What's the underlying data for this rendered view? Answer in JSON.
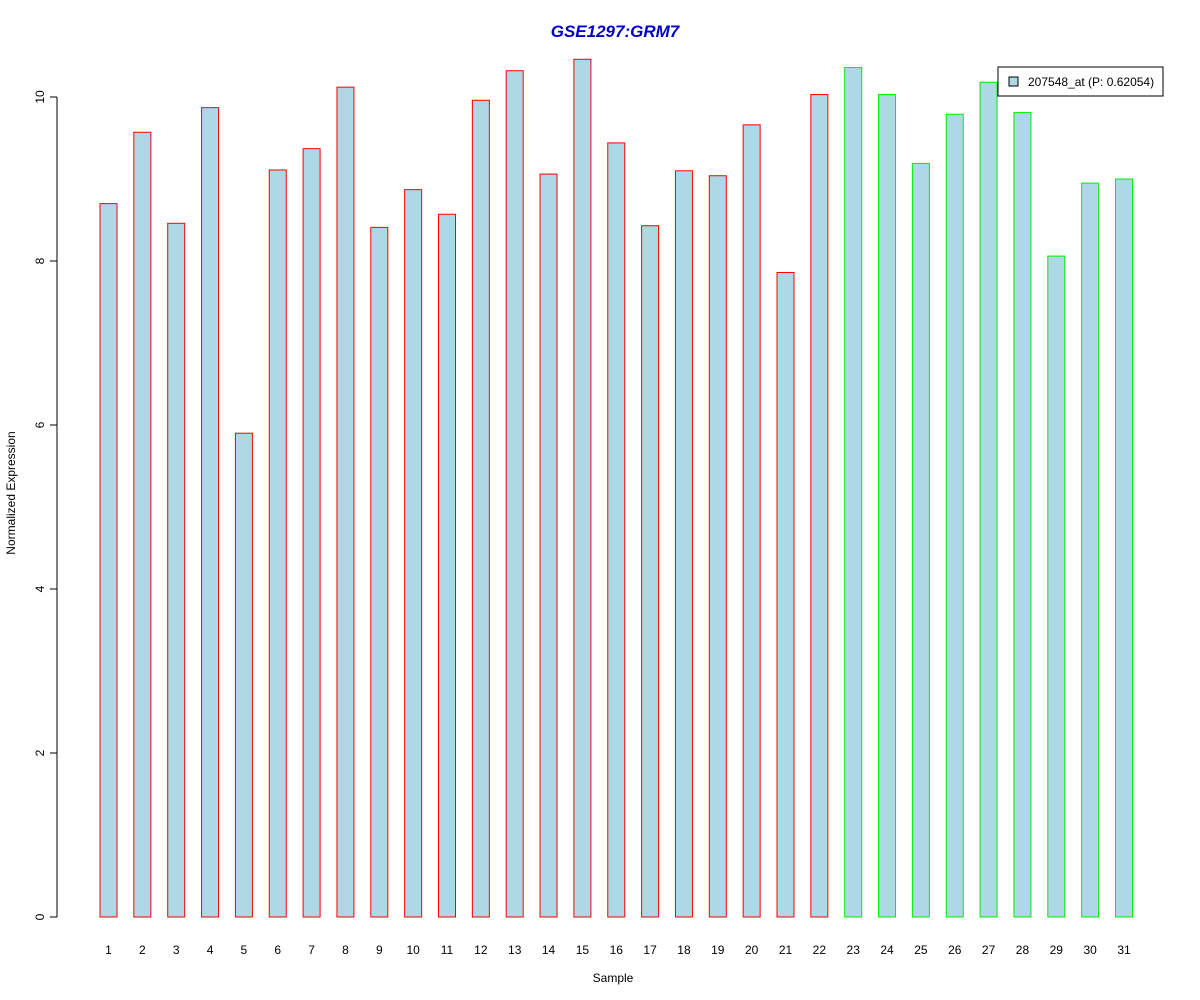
{
  "chart_data": {
    "type": "bar",
    "title": "GSE1297:GRM7",
    "xlabel": "Sample",
    "ylabel": "Normalized Expression",
    "ylim": [
      0,
      10.5
    ],
    "yticks": [
      0,
      2,
      4,
      6,
      8,
      10
    ],
    "ytick_labels": [
      "0",
      "2",
      "4",
      "6",
      "8",
      "10"
    ],
    "grid": false,
    "legend_position": "top-right",
    "categories": [
      "1",
      "2",
      "3",
      "4",
      "5",
      "6",
      "7",
      "8",
      "9",
      "10",
      "11",
      "12",
      "13",
      "14",
      "15",
      "16",
      "17",
      "18",
      "19",
      "20",
      "21",
      "22",
      "23",
      "24",
      "25",
      "26",
      "27",
      "28",
      "29",
      "30",
      "31"
    ],
    "series": [
      {
        "name": "207548_at (P: 0.62054)",
        "values": [
          8.7,
          9.57,
          8.46,
          9.87,
          5.9,
          9.11,
          9.37,
          10.12,
          8.41,
          8.87,
          8.57,
          9.96,
          10.32,
          9.06,
          10.46,
          9.44,
          8.43,
          9.1,
          9.04,
          9.66,
          7.86,
          10.03,
          10.36,
          10.03,
          9.19,
          9.79,
          10.18,
          9.81,
          8.06,
          8.95,
          9.0
        ]
      }
    ],
    "groups": [
      "red",
      "red",
      "red",
      "red",
      "red",
      "red",
      "red",
      "red",
      "red",
      "red",
      "red",
      "red",
      "red",
      "red",
      "red",
      "red",
      "red",
      "red",
      "red",
      "red",
      "red",
      "red",
      "green",
      "green",
      "green",
      "green",
      "green",
      "green",
      "green",
      "green",
      "green"
    ]
  },
  "colors": {
    "title": "#0000cc",
    "bar_fill": "#add8e6",
    "group_red": "#ff0000",
    "group_green": "#00ee00",
    "axis": "#000000"
  }
}
